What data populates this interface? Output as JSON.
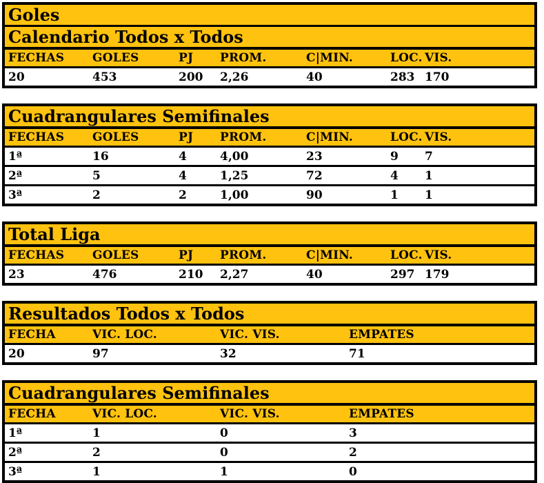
{
  "colors": {
    "accent": "#FFC20E",
    "border": "#000000",
    "row_background": "#FFFFFF",
    "text": "#000000"
  },
  "sections": [
    {
      "titles": [
        "Goles",
        "Calendario Todos x Todos"
      ],
      "headers": [
        "FECHAS",
        "GOLES",
        "PJ",
        "PROM.",
        "C|MIN.",
        "LOC.",
        "VIS."
      ],
      "rows": [
        [
          "20",
          "453",
          "200",
          "2,26",
          "40",
          "283",
          "170"
        ]
      ]
    },
    {
      "titles": [
        "Cuadrangulares Semifinales"
      ],
      "headers": [
        "FECHAS",
        "GOLES",
        "PJ",
        "PROM.",
        "C|MIN.",
        "LOC.",
        "VIS."
      ],
      "rows": [
        [
          "1ª",
          "16",
          "4",
          "4,00",
          "23",
          "9",
          "7"
        ],
        [
          "2ª",
          "5",
          "4",
          "1,25",
          "72",
          "4",
          "1"
        ],
        [
          "3ª",
          "2",
          "2",
          "1,00",
          "90",
          "1",
          "1"
        ]
      ]
    },
    {
      "titles": [
        "Total Liga"
      ],
      "headers": [
        "FECHAS",
        "GOLES",
        "PJ",
        "PROM.",
        "C|MIN.",
        "LOC.",
        "VIS."
      ],
      "rows": [
        [
          "23",
          "476",
          "210",
          "2,27",
          "40",
          "297",
          "179"
        ]
      ]
    },
    {
      "titles": [
        "Resultados Todos x Todos"
      ],
      "headers": [
        "FECHA",
        "VIC. LOC.",
        "VIC. VIS.",
        "EMPATES"
      ],
      "rows": [
        [
          "20",
          "97",
          "32",
          "71"
        ]
      ]
    },
    {
      "titles": [
        "Cuadrangulares Semifinales"
      ],
      "headers": [
        "FECHA",
        "VIC. LOC.",
        "VIC. VIS.",
        "EMPATES"
      ],
      "rows": [
        [
          "1ª",
          "1",
          "0",
          "3"
        ],
        [
          "2ª",
          "2",
          "0",
          "2"
        ],
        [
          "3ª",
          "1",
          "1",
          "0"
        ]
      ]
    }
  ]
}
